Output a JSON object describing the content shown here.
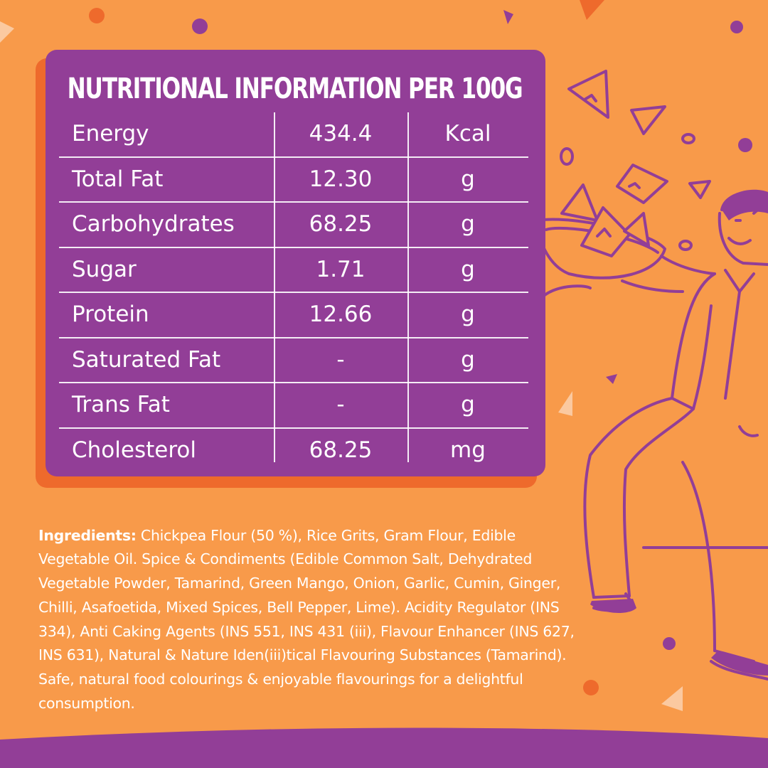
{
  "panel": {
    "title": "NUTRITIONAL INFORMATION PER 100G",
    "rows": [
      {
        "name": "Energy",
        "value": "434.4",
        "unit": "Kcal"
      },
      {
        "name": "Total Fat",
        "value": "12.30",
        "unit": "g"
      },
      {
        "name": "Carbohydrates",
        "value": "68.25",
        "unit": "g"
      },
      {
        "name": "Sugar",
        "value": "1.71",
        "unit": "g"
      },
      {
        "name": "Protein",
        "value": "12.66",
        "unit": "g"
      },
      {
        "name": "Saturated Fat",
        "value": "-",
        "unit": "g"
      },
      {
        "name": "Trans Fat",
        "value": "-",
        "unit": "g"
      },
      {
        "name": "Cholesterol",
        "value": "68.25",
        "unit": "mg"
      }
    ]
  },
  "ingredients": {
    "label": "Ingredients:",
    "text": " Chickpea Flour (50 %), Rice Grits, Gram Flour, Edible Vegetable Oil. Spice & Condiments (Edible Common Salt, Dehydrated Vegetable Powder, Tamarind, Green Mango, Onion, Garlic, Cumin, Ginger, Chilli, Asafoetida, Mixed Spices, Bell Pepper, Lime). Acidity Regulator (INS 334), Anti Caking Agents (INS 551, INS 431 (iii), Flavour Enhancer (INS 627, INS 631), Natural & Nature Iden(iii)tical Flavouring Substances (Tamarind). Safe, natural food colourings & enjoyable flavourings for a delightful consumption."
  },
  "colors": {
    "background": "#F89A4A",
    "panel": "#923E97",
    "panel_shadow": "#EE6A2C",
    "accent": "#8E3A95",
    "text": "#FFFFFF"
  },
  "illustration": {
    "subject": "man-carrying-bowl-of-chips",
    "icons": [
      "chip-triangle-icon",
      "dot-icon"
    ]
  }
}
